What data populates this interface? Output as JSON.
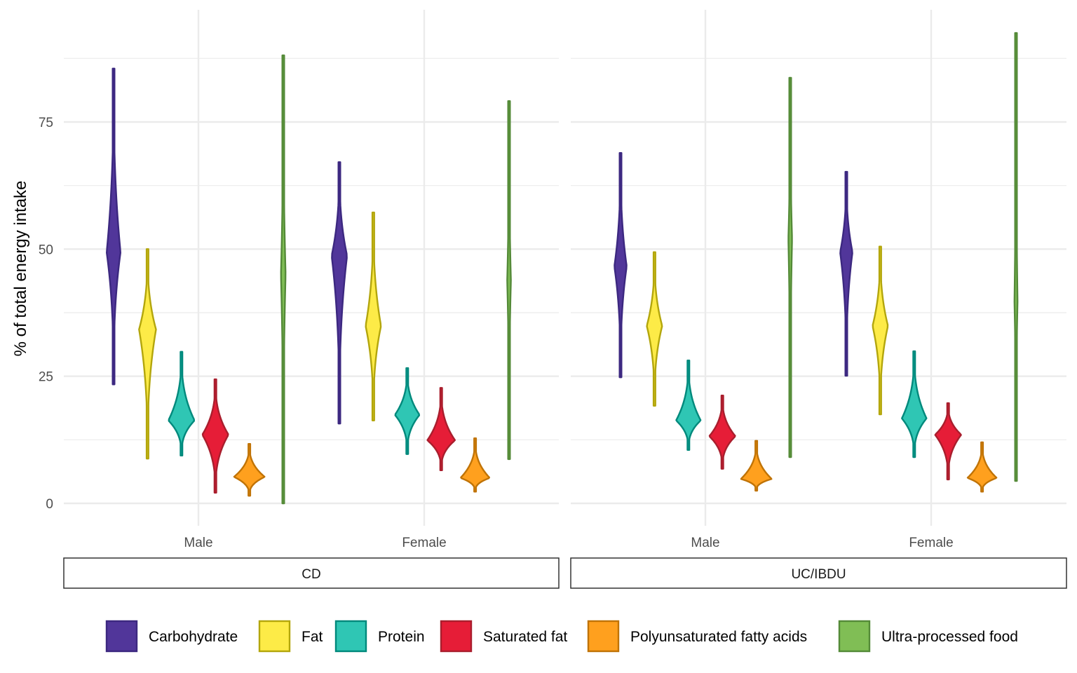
{
  "chart_data": {
    "type": "violin",
    "title": "",
    "xlabel": "",
    "ylabel": "% of total energy intake",
    "ylim": [
      -3.5,
      97
    ],
    "yticks": [
      0,
      25,
      50,
      75
    ],
    "ytick_labels": [
      "0",
      "25",
      "50",
      "75"
    ],
    "grid": true,
    "categories": [
      "Male",
      "Female"
    ],
    "facets": [
      "CD",
      "UC/IBDU"
    ],
    "legend_position": "bottom",
    "series": [
      {
        "name": "Carbohydrate",
        "fill": "#51369A",
        "stroke": "#3C2880"
      },
      {
        "name": "Fat",
        "fill": "#FDEB47",
        "stroke": "#B3A60C"
      },
      {
        "name": "Protein",
        "fill": "#2FC6B4",
        "stroke": "#00897C"
      },
      {
        "name": "Saturated fat",
        "fill": "#E61D37",
        "stroke": "#A91E2D"
      },
      {
        "name": "Polyunsaturated fatty acids",
        "fill": "#FFA01E",
        "stroke": "#C07306"
      },
      {
        "name": "Ultra-processed food",
        "fill": "#80BE55",
        "stroke": "#548A38"
      }
    ],
    "violins": {
      "CD": {
        "Male": [
          {
            "series": "Carbohydrate",
            "min": 23.4,
            "max": 85.5,
            "mode": 49.4,
            "width": 0.45
          },
          {
            "series": "Fat",
            "min": 8.8,
            "max": 50.0,
            "mode": 34.2,
            "width": 0.55
          },
          {
            "series": "Protein",
            "min": 9.4,
            "max": 29.8,
            "mode": 16.3,
            "width": 0.85
          },
          {
            "series": "Saturated fat",
            "min": 2.1,
            "max": 24.4,
            "mode": 13.5,
            "width": 0.85
          },
          {
            "series": "Polyunsaturated fatty acids",
            "min": 1.5,
            "max": 11.7,
            "mode": 5.2,
            "width": 1.0
          },
          {
            "series": "Ultra-processed food",
            "min": 0.0,
            "max": 88.1,
            "mode": 45.0,
            "width": 0.15
          }
        ],
        "Female": [
          {
            "series": "Carbohydrate",
            "min": 15.7,
            "max": 67.1,
            "mode": 48.7,
            "width": 0.5
          },
          {
            "series": "Fat",
            "min": 16.3,
            "max": 57.2,
            "mode": 34.9,
            "width": 0.5
          },
          {
            "series": "Protein",
            "min": 9.7,
            "max": 26.6,
            "mode": 17.4,
            "width": 0.8
          },
          {
            "series": "Saturated fat",
            "min": 6.5,
            "max": 22.7,
            "mode": 12.4,
            "width": 0.9
          },
          {
            "series": "Polyunsaturated fatty acids",
            "min": 2.3,
            "max": 12.8,
            "mode": 5.0,
            "width": 0.95
          },
          {
            "series": "Ultra-processed food",
            "min": 8.7,
            "max": 79.1,
            "mode": 43.8,
            "width": 0.12
          }
        ]
      },
      "UC/IBDU": {
        "Male": [
          {
            "series": "Carbohydrate",
            "min": 24.8,
            "max": 68.9,
            "mode": 46.6,
            "width": 0.4
          },
          {
            "series": "Fat",
            "min": 19.2,
            "max": 49.4,
            "mode": 34.9,
            "width": 0.5
          },
          {
            "series": "Protein",
            "min": 10.5,
            "max": 28.1,
            "mode": 16.3,
            "width": 0.8
          },
          {
            "series": "Saturated fat",
            "min": 6.8,
            "max": 21.2,
            "mode": 13.2,
            "width": 0.85
          },
          {
            "series": "Polyunsaturated fatty acids",
            "min": 2.5,
            "max": 12.3,
            "mode": 4.8,
            "width": 1.0
          },
          {
            "series": "Ultra-processed food",
            "min": 9.1,
            "max": 83.7,
            "mode": 52.0,
            "width": 0.12
          }
        ],
        "Female": [
          {
            "series": "Carbohydrate",
            "min": 25.1,
            "max": 65.2,
            "mode": 49.4,
            "width": 0.4
          },
          {
            "series": "Fat",
            "min": 17.5,
            "max": 50.5,
            "mode": 34.9,
            "width": 0.5
          },
          {
            "series": "Protein",
            "min": 9.1,
            "max": 29.9,
            "mode": 16.7,
            "width": 0.8
          },
          {
            "series": "Saturated fat",
            "min": 4.7,
            "max": 19.7,
            "mode": 13.5,
            "width": 0.85
          },
          {
            "series": "Polyunsaturated fatty acids",
            "min": 2.3,
            "max": 12.0,
            "mode": 5.0,
            "width": 0.95
          },
          {
            "series": "Ultra-processed food",
            "min": 4.4,
            "max": 92.5,
            "mode": 39.7,
            "width": 0.1
          }
        ]
      }
    }
  }
}
